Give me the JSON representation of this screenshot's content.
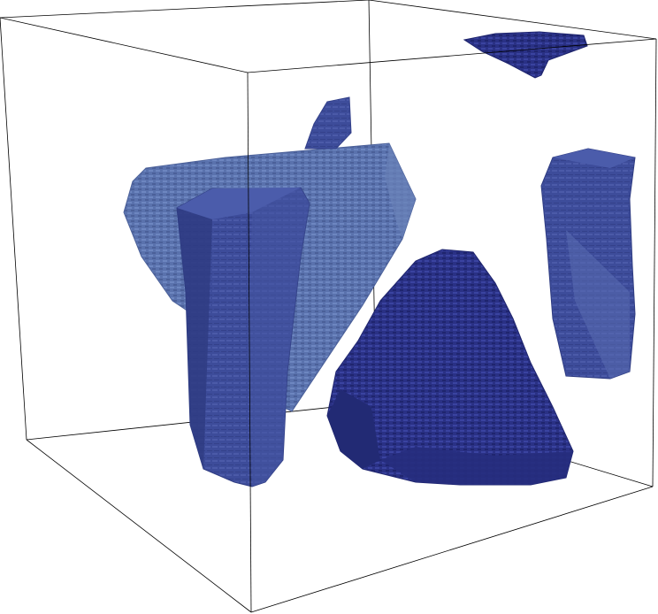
{
  "scene": {
    "description_visible_text": "",
    "colors": {
      "background": "#ffffff",
      "frame_line": "#000000",
      "solid_dark": "#2a3185",
      "solid_dark_side": "#222a74",
      "solid_mid": "#3d4c9a",
      "solid_mid_side": "#2f3c82",
      "solid_light": "#5a72ad",
      "solid_light_side": "#4a5f9c",
      "solid_pale": "#6a82b8"
    },
    "objects": [
      {
        "name": "bounding-box-frame"
      },
      {
        "name": "light-slab-solid"
      },
      {
        "name": "tall-prism-solid"
      },
      {
        "name": "dark-pyramid-solid"
      },
      {
        "name": "right-wedge-solid"
      },
      {
        "name": "top-sliver-solid"
      },
      {
        "name": "small-spike-solid"
      }
    ]
  }
}
